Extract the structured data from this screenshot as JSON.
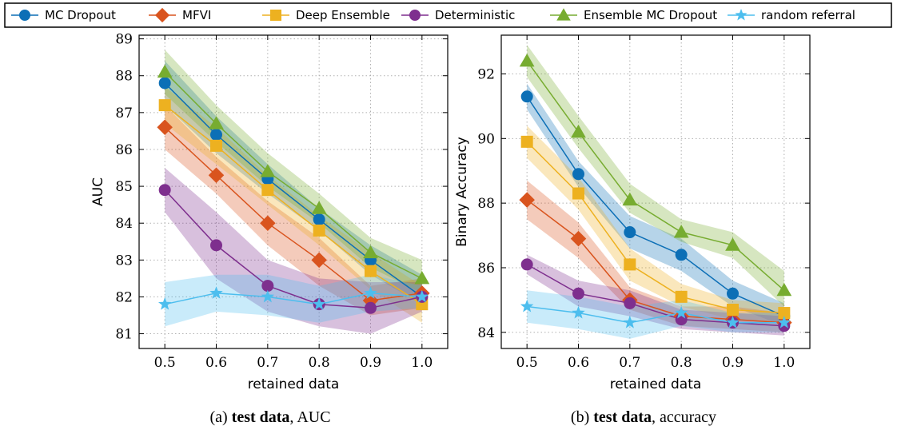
{
  "legend": {
    "entries": [
      {
        "label": "MC Dropout",
        "marker": "circle",
        "color": "#0c6fb6"
      },
      {
        "label": "MFVI",
        "marker": "diamond",
        "color": "#d9541e"
      },
      {
        "label": "Deep Ensemble",
        "marker": "square",
        "color": "#edb120"
      },
      {
        "label": "Deterministic",
        "marker": "circle",
        "color": "#7e2f8e"
      },
      {
        "label": "Ensemble MC Dropout",
        "marker": "triangle",
        "color": "#77ac30"
      },
      {
        "label": "random referral",
        "marker": "star",
        "color": "#4dbeee"
      }
    ]
  },
  "captions": [
    {
      "prefix": "(a) ",
      "bold": "test data",
      "suffix": ", AUC"
    },
    {
      "prefix": "(b) ",
      "bold": "test data",
      "suffix": ", accuracy"
    }
  ],
  "chart_data": [
    {
      "type": "line",
      "xlabel": "retained data",
      "ylabel": "AUC",
      "x": [
        0.5,
        0.6,
        0.7,
        0.8,
        0.9,
        1.0
      ],
      "xticks": [
        "0.5",
        "0.6",
        "0.7",
        "0.8",
        "0.9",
        "1.0"
      ],
      "xlim": [
        0.45,
        1.05
      ],
      "ylim": [
        80.6,
        89.1
      ],
      "yticks": [
        81,
        82,
        83,
        84,
        85,
        86,
        87,
        88,
        89
      ],
      "grid": true,
      "series": [
        {
          "name": "MC Dropout",
          "values": [
            87.8,
            86.4,
            85.2,
            84.1,
            83.0,
            82.0
          ],
          "lower": [
            87.2,
            85.9,
            84.8,
            83.8,
            82.6,
            81.8
          ],
          "upper": [
            88.4,
            86.9,
            85.6,
            84.4,
            83.4,
            82.6
          ]
        },
        {
          "name": "MFVI",
          "values": [
            86.6,
            85.3,
            84.0,
            83.0,
            81.9,
            82.1
          ],
          "lower": [
            86.0,
            84.8,
            83.4,
            82.3,
            81.5,
            81.7
          ],
          "upper": [
            87.2,
            85.8,
            84.6,
            83.6,
            82.3,
            82.5
          ]
        },
        {
          "name": "Deep Ensemble",
          "values": [
            87.2,
            86.1,
            84.9,
            83.8,
            82.7,
            81.8
          ],
          "lower": [
            86.7,
            85.6,
            84.5,
            83.4,
            82.2,
            81.3
          ],
          "upper": [
            87.7,
            86.6,
            85.3,
            84.2,
            83.2,
            82.3
          ]
        },
        {
          "name": "Deterministic",
          "values": [
            84.9,
            83.4,
            82.3,
            81.8,
            81.7,
            82.0
          ],
          "lower": [
            84.3,
            82.5,
            81.6,
            81.2,
            81.0,
            81.6
          ],
          "upper": [
            85.5,
            84.3,
            83.0,
            82.5,
            82.4,
            82.4
          ]
        },
        {
          "name": "Ensemble MC Dropout",
          "values": [
            88.1,
            86.7,
            85.4,
            84.4,
            83.2,
            82.5
          ],
          "lower": [
            87.5,
            86.2,
            85.0,
            84.0,
            82.8,
            82.1
          ],
          "upper": [
            88.7,
            87.2,
            85.9,
            84.8,
            83.6,
            83.0
          ]
        },
        {
          "name": "random referral",
          "values": [
            81.8,
            82.1,
            82.0,
            81.8,
            82.1,
            82.0
          ],
          "lower": [
            81.2,
            81.6,
            81.5,
            81.3,
            81.6,
            81.7
          ],
          "upper": [
            82.4,
            82.6,
            82.6,
            82.3,
            82.6,
            82.3
          ]
        }
      ]
    },
    {
      "type": "line",
      "xlabel": "retained data",
      "ylabel": "Binary Accuracy",
      "x": [
        0.5,
        0.6,
        0.7,
        0.8,
        0.9,
        1.0
      ],
      "xticks": [
        "0.5",
        "0.6",
        "0.7",
        "0.8",
        "0.9",
        "1.0"
      ],
      "xlim": [
        0.45,
        1.05
      ],
      "ylim": [
        83.5,
        93.2
      ],
      "yticks": [
        84,
        86,
        88,
        90,
        92
      ],
      "grid": true,
      "series": [
        {
          "name": "MC Dropout",
          "values": [
            91.3,
            88.9,
            87.1,
            86.4,
            85.2,
            84.5
          ],
          "lower": [
            90.9,
            88.5,
            86.6,
            85.9,
            84.8,
            84.2
          ],
          "upper": [
            91.7,
            89.3,
            87.6,
            86.9,
            85.6,
            84.9
          ]
        },
        {
          "name": "MFVI",
          "values": [
            88.1,
            86.9,
            85.0,
            84.5,
            84.4,
            84.3
          ],
          "lower": [
            87.5,
            86.3,
            84.7,
            84.2,
            84.1,
            84.0
          ],
          "upper": [
            88.7,
            87.4,
            85.4,
            84.8,
            84.8,
            84.6
          ]
        },
        {
          "name": "Deep Ensemble",
          "values": [
            89.9,
            88.3,
            86.1,
            85.1,
            84.7,
            84.6
          ],
          "lower": [
            89.4,
            87.8,
            85.6,
            84.8,
            84.4,
            84.3
          ],
          "upper": [
            90.4,
            88.8,
            86.6,
            85.5,
            85.0,
            84.9
          ]
        },
        {
          "name": "Deterministic",
          "values": [
            86.1,
            85.2,
            84.9,
            84.4,
            84.3,
            84.2
          ],
          "lower": [
            85.8,
            84.8,
            84.5,
            84.1,
            84.0,
            83.9
          ],
          "upper": [
            86.4,
            85.6,
            85.3,
            84.7,
            84.6,
            84.5
          ]
        },
        {
          "name": "Ensemble MC Dropout",
          "values": [
            92.4,
            90.2,
            88.1,
            87.1,
            86.7,
            85.3
          ],
          "lower": [
            91.9,
            89.7,
            87.7,
            86.8,
            86.3,
            84.8
          ],
          "upper": [
            92.9,
            90.7,
            88.6,
            87.5,
            87.1,
            85.9
          ]
        },
        {
          "name": "random referral",
          "values": [
            84.8,
            84.6,
            84.3,
            84.6,
            84.3,
            84.3
          ],
          "lower": [
            84.3,
            84.1,
            83.8,
            84.2,
            84.0,
            84.0
          ],
          "upper": [
            85.3,
            85.1,
            84.8,
            85.0,
            84.6,
            84.6
          ]
        }
      ]
    }
  ]
}
